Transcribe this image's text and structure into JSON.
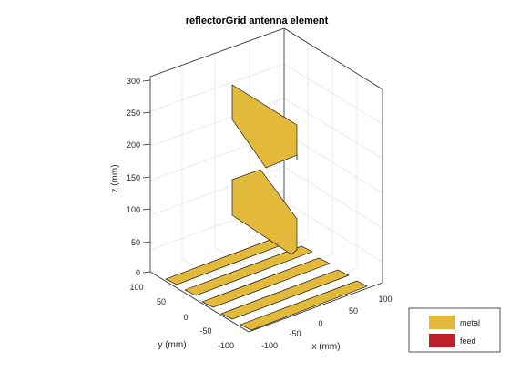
{
  "figure": {
    "title": "reflectorGrid antenna element"
  },
  "axes": {
    "x": {
      "label": "x (mm)",
      "ticks": [
        "-100",
        "-50",
        "0",
        "50",
        "100"
      ]
    },
    "y": {
      "label": "y (mm)",
      "ticks": [
        "-100",
        "-50",
        "0",
        "50",
        "100"
      ]
    },
    "z": {
      "label": "z (mm)",
      "ticks": [
        "0",
        "50",
        "100",
        "150",
        "200",
        "250",
        "300"
      ]
    }
  },
  "legend": {
    "placement": "bottom-right",
    "items": [
      {
        "label": "metal",
        "color": "#e2b93b"
      },
      {
        "label": "feed",
        "color": "#c0202c"
      }
    ]
  },
  "colors": {
    "metal": "#e2b93b",
    "feed": "#c0202c",
    "edge": "#000000"
  }
}
